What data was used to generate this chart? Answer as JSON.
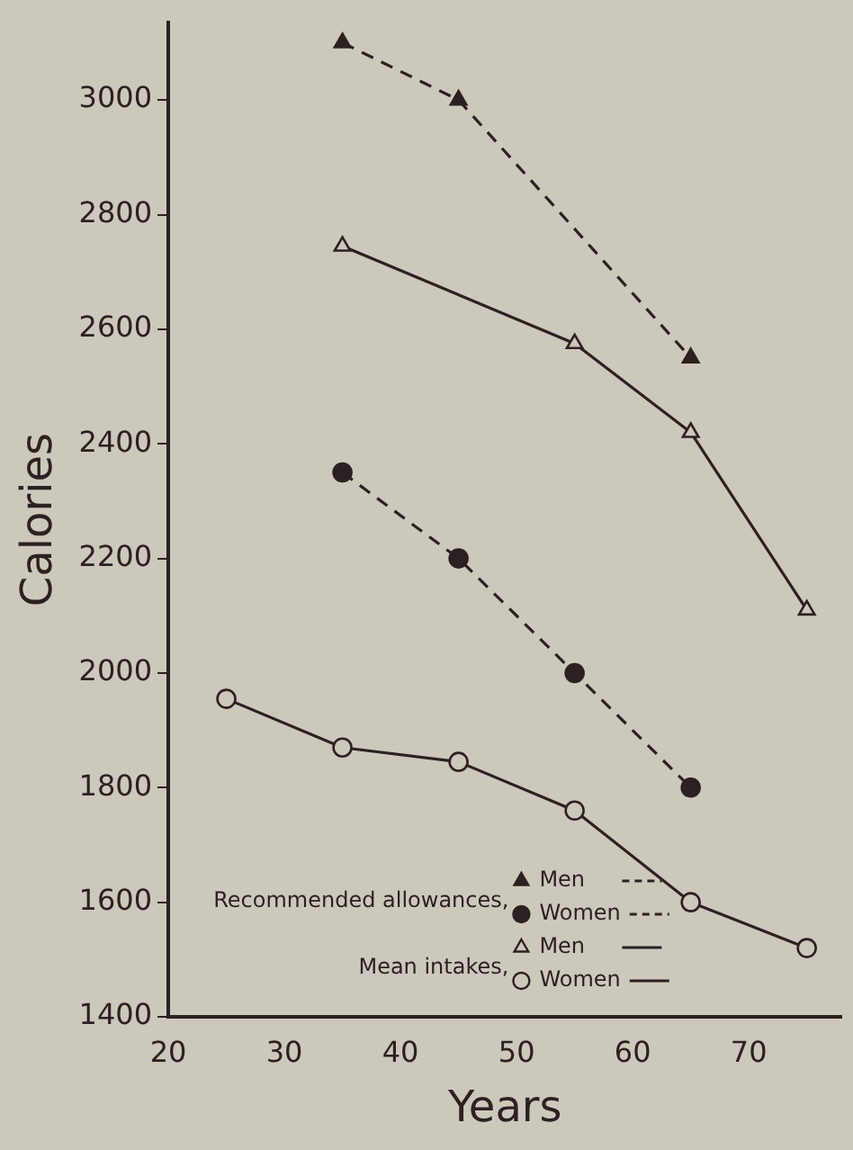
{
  "chart_data": {
    "type": "line",
    "xlabel": "Years",
    "ylabel": "Calories",
    "xlim": [
      20,
      78
    ],
    "xticks": [
      20,
      30,
      40,
      50,
      60,
      70
    ],
    "ylim": [
      1400,
      3135
    ],
    "yticks": [
      1400,
      1600,
      1800,
      2000,
      2200,
      2400,
      2600,
      2800,
      3000
    ],
    "grid": false,
    "legend": "bottom right",
    "annotations": [
      "Recommended allowances,",
      "Mean intakes,"
    ],
    "series": [
      {
        "name": "Men",
        "color": "#2a2222",
        "marker": "triangle",
        "line_style": "dashed",
        "x": [
          35,
          45,
          65
        ],
        "values": [
          3100,
          3000,
          2550
        ]
      },
      {
        "name": "Women",
        "color": "#2a2222",
        "marker": "circle",
        "line_style": "dashed",
        "x": [
          35,
          45,
          55,
          65
        ],
        "values": [
          2350,
          2200,
          2000,
          1800
        ]
      },
      {
        "name": "Men",
        "color": "#2a2222",
        "marker": "triangle",
        "line_style": "solid",
        "x": [
          35,
          55,
          65,
          75
        ],
        "values": [
          2745,
          2575,
          2420,
          2110
        ]
      },
      {
        "name": "Women",
        "color": "#2a2222",
        "marker": "circle",
        "line_style": "solid",
        "x": [
          25,
          35,
          45,
          55,
          65,
          75
        ],
        "values": [
          1955,
          1870,
          1845,
          1760,
          1600,
          1520
        ]
      }
    ]
  }
}
